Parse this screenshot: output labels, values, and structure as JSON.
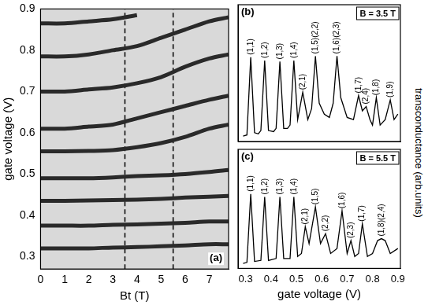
{
  "chart_data": [
    {
      "type": "line",
      "panel_label": "(a)",
      "x_label": "Bt (T)",
      "y_label": "gate voltage (V)",
      "x": [
        0,
        1,
        2,
        3,
        4,
        5,
        6,
        7,
        7.8
      ],
      "series": [
        {
          "color": "#2a2a2a",
          "values": [
            0.32,
            0.32,
            0.32,
            0.322,
            0.323,
            0.325,
            0.327,
            0.33,
            0.33
          ]
        },
        {
          "color": "#2a2a2a",
          "values": [
            0.375,
            0.375,
            0.375,
            0.377,
            0.378,
            0.38,
            0.382,
            0.385,
            0.385
          ]
        },
        {
          "color": "#2a2a2a",
          "values": [
            0.435,
            0.435,
            0.436,
            0.437,
            0.438,
            0.44,
            0.443,
            0.445,
            0.447
          ]
        },
        {
          "color": "#2a2a2a",
          "values": [
            0.49,
            0.49,
            0.49,
            0.492,
            0.495,
            0.497,
            0.5,
            0.505,
            0.51
          ]
        },
        {
          "color": "#2a2a2a",
          "values": [
            0.555,
            0.555,
            0.556,
            0.558,
            0.565,
            0.575,
            0.59,
            0.61,
            0.62
          ]
        },
        {
          "color": "#2a2a2a",
          "values": [
            0.61,
            0.61,
            0.615,
            0.62,
            0.635,
            0.65,
            0.665,
            0.68,
            0.69
          ]
        },
        {
          "color": "#2a2a2a",
          "values": [
            0.7,
            0.7,
            0.705,
            0.71,
            0.72,
            0.735,
            0.76,
            0.78,
            0.79
          ]
        },
        {
          "color": "#2a2a2a",
          "values": [
            0.785,
            0.785,
            0.79,
            0.8,
            0.81,
            0.83,
            0.85,
            0.87,
            0.88
          ]
        },
        {
          "color": "#2a2a2a",
          "values": [
            0.865,
            0.865,
            0.87,
            0.875,
            0.885,
            null,
            null,
            null,
            null
          ]
        }
      ],
      "vlines": [
        {
          "x": 3.5,
          "line_style": "dashed"
        },
        {
          "x": 5.5,
          "line_style": "dashed"
        }
      ],
      "xlim": [
        0,
        7.8
      ],
      "xticks": [
        0,
        1,
        2,
        3,
        4,
        5,
        6,
        7
      ],
      "ylim": [
        0.27,
        0.9
      ],
      "yticks": [
        0.3,
        0.4,
        0.5,
        0.6,
        0.7,
        0.8,
        0.9
      ],
      "grid": false
    },
    {
      "type": "line",
      "panel_label": "(b)",
      "title": "B = 3.5 T",
      "y_label": "transconductance (arb.units)",
      "x": [
        0.29,
        0.305,
        0.32,
        0.335,
        0.35,
        0.36,
        0.375,
        0.39,
        0.41,
        0.42,
        0.435,
        0.45,
        0.465,
        0.475,
        0.49,
        0.505,
        0.525,
        0.545,
        0.56,
        0.575,
        0.59,
        0.61,
        0.63,
        0.645,
        0.66,
        0.675,
        0.7,
        0.725,
        0.745,
        0.76,
        0.775,
        0.79,
        0.8,
        0.815,
        0.83,
        0.85,
        0.87,
        0.885,
        0.9
      ],
      "values": [
        0.05,
        0.06,
        0.77,
        0.08,
        0.07,
        0.1,
        0.74,
        0.1,
        0.09,
        0.12,
        0.73,
        0.12,
        0.12,
        0.15,
        0.74,
        0.2,
        0.45,
        0.2,
        0.3,
        0.78,
        0.35,
        0.25,
        0.22,
        0.35,
        0.78,
        0.4,
        0.22,
        0.2,
        0.42,
        0.28,
        0.32,
        0.2,
        0.15,
        0.4,
        0.15,
        0.2,
        0.38,
        0.2,
        0.25
      ],
      "color": "#000000",
      "annotations": [
        {
          "text": "(1,1)",
          "x": 0.32,
          "y": 0.77
        },
        {
          "text": "(1,2)",
          "x": 0.375,
          "y": 0.74
        },
        {
          "text": "(1,3)",
          "x": 0.435,
          "y": 0.73
        },
        {
          "text": "(1,4)",
          "x": 0.49,
          "y": 0.74
        },
        {
          "text": "(2,1)",
          "x": 0.525,
          "y": 0.45
        },
        {
          "text": "(1,5)(2,2)",
          "x": 0.575,
          "y": 0.78
        },
        {
          "text": "(1,6)(2,3)",
          "x": 0.66,
          "y": 0.78
        },
        {
          "text": "(1,7)",
          "x": 0.745,
          "y": 0.42
        },
        {
          "text": "(2,4)",
          "x": 0.775,
          "y": 0.32
        },
        {
          "text": "(1,8)",
          "x": 0.815,
          "y": 0.4
        },
        {
          "text": "(1,9)",
          "x": 0.87,
          "y": 0.38
        }
      ],
      "xlim": [
        0.27,
        0.91
      ],
      "xticks": [
        0.3,
        0.4,
        0.5,
        0.6,
        0.7,
        0.8,
        0.9
      ],
      "ylim": [
        0,
        1.25
      ],
      "tick_labels": false,
      "grid": false
    },
    {
      "type": "line",
      "panel_label": "(c)",
      "title": "B = 5.5 T",
      "x_label": "gate voltage (V)",
      "x": [
        0.29,
        0.305,
        0.32,
        0.335,
        0.36,
        0.375,
        0.39,
        0.42,
        0.435,
        0.45,
        0.475,
        0.49,
        0.505,
        0.52,
        0.535,
        0.55,
        0.575,
        0.595,
        0.615,
        0.635,
        0.66,
        0.68,
        0.7,
        0.715,
        0.73,
        0.745,
        0.76,
        0.78,
        0.8,
        0.82,
        0.835,
        0.85,
        0.87,
        0.9
      ],
      "values": [
        0.05,
        0.06,
        0.75,
        0.07,
        0.08,
        0.72,
        0.08,
        0.1,
        0.72,
        0.1,
        0.1,
        0.72,
        0.12,
        0.15,
        0.42,
        0.25,
        0.62,
        0.25,
        0.35,
        0.15,
        0.2,
        0.58,
        0.15,
        0.28,
        0.12,
        0.15,
        0.45,
        0.12,
        0.15,
        0.28,
        0.3,
        0.28,
        0.15,
        0.2
      ],
      "color": "#000000",
      "annotations": [
        {
          "text": "(1,1)",
          "x": 0.32,
          "y": 0.75
        },
        {
          "text": "(1,2)",
          "x": 0.375,
          "y": 0.72
        },
        {
          "text": "(1,3)",
          "x": 0.435,
          "y": 0.72
        },
        {
          "text": "(1,4)",
          "x": 0.49,
          "y": 0.72
        },
        {
          "text": "(2,1)",
          "x": 0.535,
          "y": 0.42
        },
        {
          "text": "(1,5)",
          "x": 0.575,
          "y": 0.62
        },
        {
          "text": "(2,2)",
          "x": 0.615,
          "y": 0.35
        },
        {
          "text": "(1,6)",
          "x": 0.68,
          "y": 0.58
        },
        {
          "text": "(2,3)",
          "x": 0.715,
          "y": 0.28
        },
        {
          "text": "(1,7)",
          "x": 0.76,
          "y": 0.45
        },
        {
          "text": "(1,8)(2,4)",
          "x": 0.835,
          "y": 0.3
        }
      ],
      "xlim": [
        0.27,
        0.91
      ],
      "xticks": [
        0.3,
        0.4,
        0.5,
        0.6,
        0.7,
        0.8,
        0.9
      ],
      "ylim": [
        0,
        1.2
      ],
      "tick_labels": "x",
      "grid": false
    }
  ]
}
